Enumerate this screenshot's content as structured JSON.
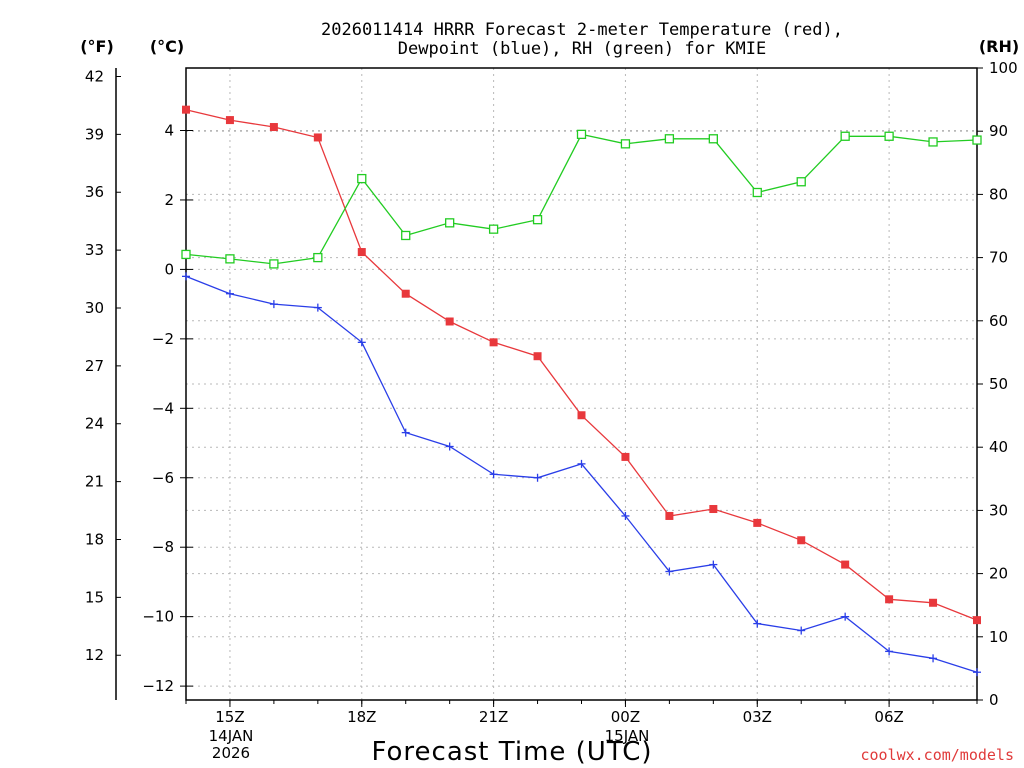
{
  "header": {
    "title_line1": "2026011414 HRRR Forecast 2-meter Temperature (red),",
    "title_line2": "Dewpoint (blue), RH (green) for KMIE"
  },
  "axes": {
    "f_unit": "(°F)",
    "c_unit": "(°C)",
    "rh_unit": "(RH)"
  },
  "xaxis": {
    "label": "Forecast Time (UTC)",
    "date1_line1": "14JAN",
    "date1_line2": "2026",
    "date2_line1": "15JAN"
  },
  "footer": {
    "credit": "coolwx.com/models"
  },
  "colors": {
    "temperature": "#e8383c",
    "dewpoint": "#2a3ee8",
    "rh": "#22cc22",
    "axis": "#000000"
  },
  "chart_data": {
    "type": "line",
    "title": "2026011414 HRRR Forecast 2-meter Temperature (red), Dewpoint (blue), RH (green) for KMIE",
    "xlabel": "Forecast Time (UTC)",
    "x_hours": [
      14,
      15,
      16,
      17,
      18,
      19,
      20,
      21,
      22,
      23,
      24,
      25,
      26,
      27,
      28,
      29,
      30,
      31,
      32
    ],
    "x_range": [
      14,
      32
    ],
    "x_ticks": [
      {
        "hour": 15,
        "label": "15Z"
      },
      {
        "hour": 18,
        "label": "18Z"
      },
      {
        "hour": 21,
        "label": "21Z"
      },
      {
        "hour": 24,
        "label": "00Z"
      },
      {
        "hour": 27,
        "label": "03Z"
      },
      {
        "hour": 30,
        "label": "06Z"
      }
    ],
    "celsius_axis": {
      "label": "(°C)",
      "range": [
        -12.4,
        5.8
      ],
      "ticks": [
        4,
        2,
        0,
        -2,
        -4,
        -6,
        -8,
        -10,
        -12
      ]
    },
    "fahrenheit_axis": {
      "label": "(°F)",
      "ticks": [
        42,
        39,
        36,
        33,
        30,
        27,
        24,
        21,
        18,
        15,
        12
      ]
    },
    "rh_axis": {
      "label": "(RH)",
      "range": [
        0,
        100
      ],
      "ticks": [
        100,
        90,
        80,
        70,
        60,
        50,
        40,
        30,
        20,
        10,
        0
      ]
    },
    "grid": true,
    "series": [
      {
        "name": "Temperature",
        "color": "red",
        "axis": "C",
        "marker": "filled-square",
        "values": [
          4.6,
          4.3,
          4.1,
          3.8,
          0.5,
          -0.7,
          -1.5,
          -2.1,
          -2.5,
          -4.2,
          -5.4,
          -7.1,
          -6.9,
          -7.3,
          -7.8,
          -8.5,
          -9.5,
          -9.6,
          -10.1
        ]
      },
      {
        "name": "Dewpoint",
        "color": "blue",
        "axis": "C",
        "marker": "plus",
        "values": [
          -0.2,
          -0.7,
          -1.0,
          -1.1,
          -2.1,
          -4.7,
          -5.1,
          -5.9,
          -6.0,
          -5.6,
          -7.1,
          -8.7,
          -8.5,
          -10.2,
          -10.4,
          -10.0,
          -11.0,
          -11.2,
          -11.6
        ]
      },
      {
        "name": "RH",
        "color": "green",
        "axis": "RH",
        "marker": "open-square",
        "values": [
          70.5,
          69.8,
          69.0,
          70.0,
          82.5,
          73.5,
          75.5,
          74.5,
          76.0,
          89.5,
          88.0,
          88.8,
          88.8,
          80.3,
          82.0,
          89.2,
          89.2,
          88.3,
          88.6
        ]
      }
    ]
  }
}
